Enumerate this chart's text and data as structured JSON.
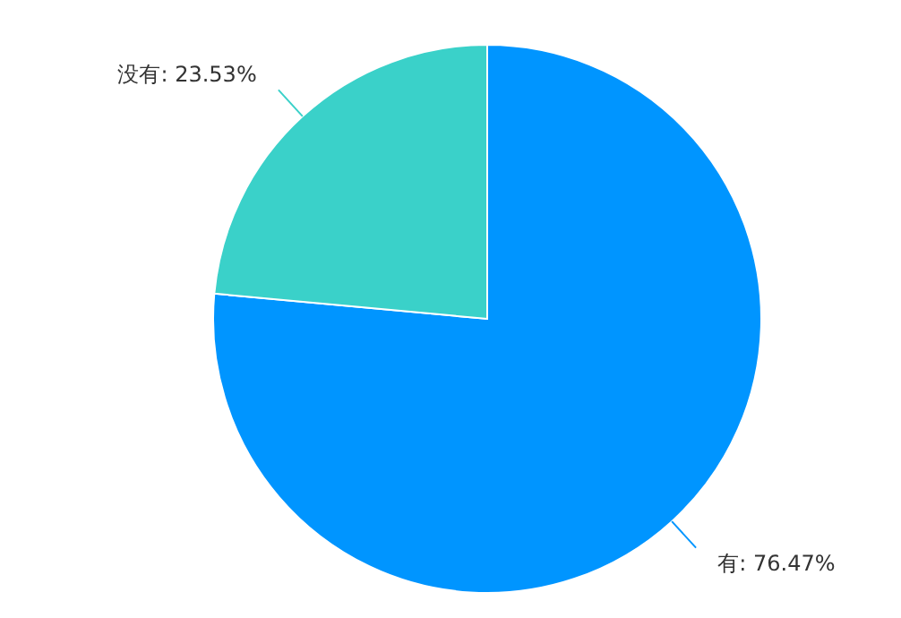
{
  "chart_data": {
    "type": "pie",
    "categories": [
      "有",
      "没有"
    ],
    "values": [
      76.47,
      23.53
    ],
    "colors": [
      "#0095ff",
      "#3ad1c9"
    ],
    "value_labels": [
      "76.47%",
      "23.53%"
    ],
    "data_labels": true,
    "legend": false
  }
}
